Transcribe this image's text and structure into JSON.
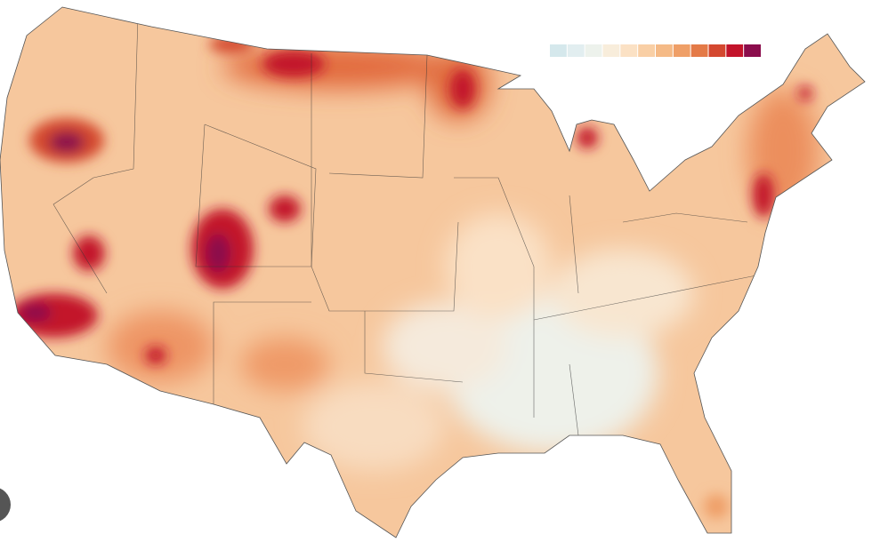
{
  "legend": {
    "colors": [
      "#d5e8ec",
      "#e2eef0",
      "#edf2ec",
      "#f8eddb",
      "#fbe1c4",
      "#f9cfa5",
      "#f5ba86",
      "#ef9f67",
      "#e47a47",
      "#d4482f",
      "#c3132a",
      "#8b0d4c"
    ]
  }
}
